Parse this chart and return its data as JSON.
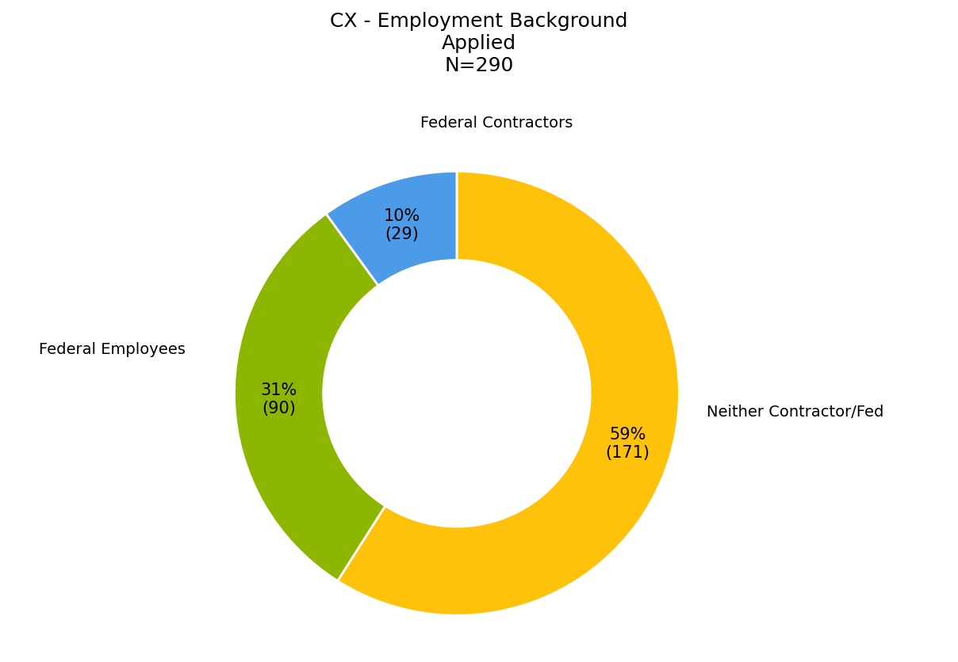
{
  "title": "CX - Employment Background\nApplied\nN=290",
  "slices": [
    {
      "label": "Neither Contractor/Fed",
      "pct": 59,
      "count": 171,
      "color": "#FFC20A"
    },
    {
      "label": "Federal Employees",
      "pct": 31,
      "count": 90,
      "color": "#8DB600"
    },
    {
      "label": "Federal Contractors",
      "pct": 10,
      "count": 29,
      "color": "#4C9BE8"
    }
  ],
  "donut_hole": 0.6,
  "title_fontsize": 18,
  "label_fontsize": 14,
  "annotation_fontsize": 15,
  "background_color": "#ffffff",
  "start_angle": 90,
  "label_positions": {
    "Federal Contractors": [
      0.18,
      1.22
    ],
    "Federal Employees": [
      -1.55,
      0.2
    ],
    "Neither Contractor/Fed": [
      1.52,
      -0.08
    ]
  }
}
